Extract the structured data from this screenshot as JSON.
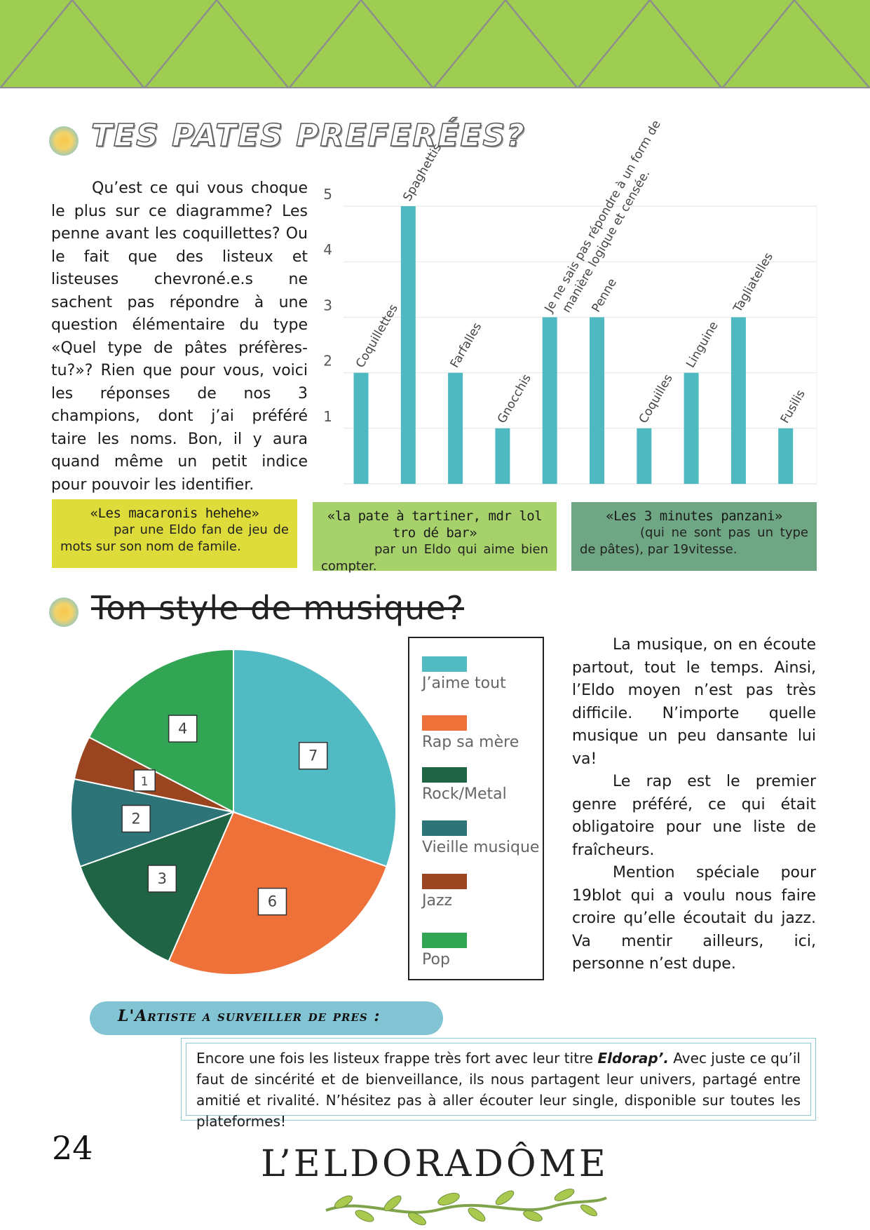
{
  "section1": {
    "title": "TES PATES PREFERÉES?",
    "paragraph": "Qu’est ce qui vous choque le plus sur ce diagramme? Les penne avant les coquillettes? Ou le fait que des listeux et listeuses chevroné.e.s ne sachent pas répondre à une question élémentaire du type «Quel type de pâtes préfères-tu?»? Rien que pour vous, voici les réponses de nos 3 champions, dont j’ai préféré taire les noms. Bon, il y aura quand même un petit indice pour pouvoir les identifier."
  },
  "chart_data": [
    {
      "type": "bar",
      "categories": [
        "Coquillettes",
        "Spaghettis",
        "Farfalles",
        "Gnocchis",
        "Je ne sais pas répondre à un form de manière logique et censée.",
        "Penne",
        "Coquilles",
        "Linguine",
        "Tagliatelles",
        "Fusilis"
      ],
      "values": [
        2,
        5,
        2,
        1,
        3,
        3,
        1,
        2,
        3,
        1
      ],
      "yticks": [
        "1",
        "2",
        "3",
        "4",
        "5"
      ],
      "ylim": [
        0,
        5
      ],
      "grid": true,
      "color": "#4fb9c1"
    },
    {
      "type": "pie",
      "categories": [
        "J’aime tout",
        "Rap sa mère",
        "Rock/Metal",
        "Vieille musique",
        "Jazz",
        "Pop"
      ],
      "values": [
        7,
        6,
        3,
        2,
        1,
        4
      ],
      "labels": [
        "7",
        "6",
        "3",
        "2",
        "1",
        "4"
      ],
      "colors": [
        "#52bac3",
        "#ee7139",
        "#1f6444",
        "#2d7479",
        "#9a4420",
        "#31a553"
      ],
      "legend": "right"
    }
  ],
  "quotes": [
    {
      "quote": "«Les macaronis hehehe»",
      "by": "par une Eldo fan de jeu de mots sur son nom de famile.",
      "color": "#dedc3b"
    },
    {
      "quote": "«la pate à tartiner, mdr lol tro dé bar»",
      "by": "par un Eldo qui aime bien compter.",
      "color": "#a7d26b"
    },
    {
      "quote": "«Les 3 minutes panzani»",
      "by": "(qui ne sont pas un type de pâtes),  par 19vitesse.",
      "color": "#6fa784"
    }
  ],
  "section2": {
    "title": "Ton style de musique?",
    "paragraph1": "La musique, on en écoute partout, tout le temps. Ainsi, l’Eldo moyen n’est pas très difficile. N’importe quelle musique un peu dansante lui va!",
    "paragraph2": "Le rap est le premier genre préféré, ce qui était obligatoire pour une liste de fraîcheurs.",
    "paragraph3": "Mention spéciale pour 19blot qui a voulu nous faire croire qu’elle écoutait du jazz. Va mentir ailleurs, ici, personne n’est dupe."
  },
  "artist": {
    "label": "L'Artiste a surveiller de pres :",
    "text_before": "Encore une fois les listeux frappe très fort avec leur titre ",
    "title": "Eldorap’.",
    "text_after": " Avec juste ce qu’il faut de sincérité et de bienveillance, ils nous partagent leur univers, partagé entre amitié et rivalité. N’hésitez pas à aller écouter leur single, disponible sur toutes les plateformes!"
  },
  "footer": {
    "page_number": "24",
    "magazine": "L’ELDORADÔME"
  },
  "colors": {
    "banner": "#9fcd52",
    "banner_line": "#8d8d8d",
    "bar": "#4fb9c1"
  }
}
